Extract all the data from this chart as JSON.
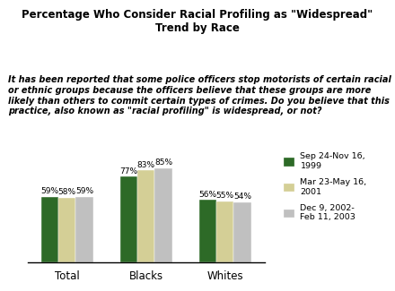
{
  "title": "Percentage Who Consider Racial Profiling as \"Widespread\"\nTrend by Race",
  "subtitle": "It has been reported that some police officers stop motorists of certain racial\nor ethnic groups because the officers believe that these groups are more\nlikely than others to commit certain types of crimes. Do you believe that this\npractice, also known as \"racial profiling\" is widespread, or not?",
  "categories": [
    "Total",
    "Blacks",
    "Whites"
  ],
  "series": [
    {
      "label": "Sep 24-Nov 16,\n1999",
      "values": [
        59,
        77,
        56
      ],
      "color": "#2d6a27"
    },
    {
      "label": "Mar 23-May 16,\n2001",
      "values": [
        58,
        83,
        55
      ],
      "color": "#d4cf96"
    },
    {
      "label": "Dec 9, 2002-\nFeb 11, 2003",
      "values": [
        59,
        85,
        54
      ],
      "color": "#c0c0c0"
    }
  ],
  "ylim": [
    0,
    100
  ],
  "bar_width": 0.22,
  "background_color": "#ffffff"
}
